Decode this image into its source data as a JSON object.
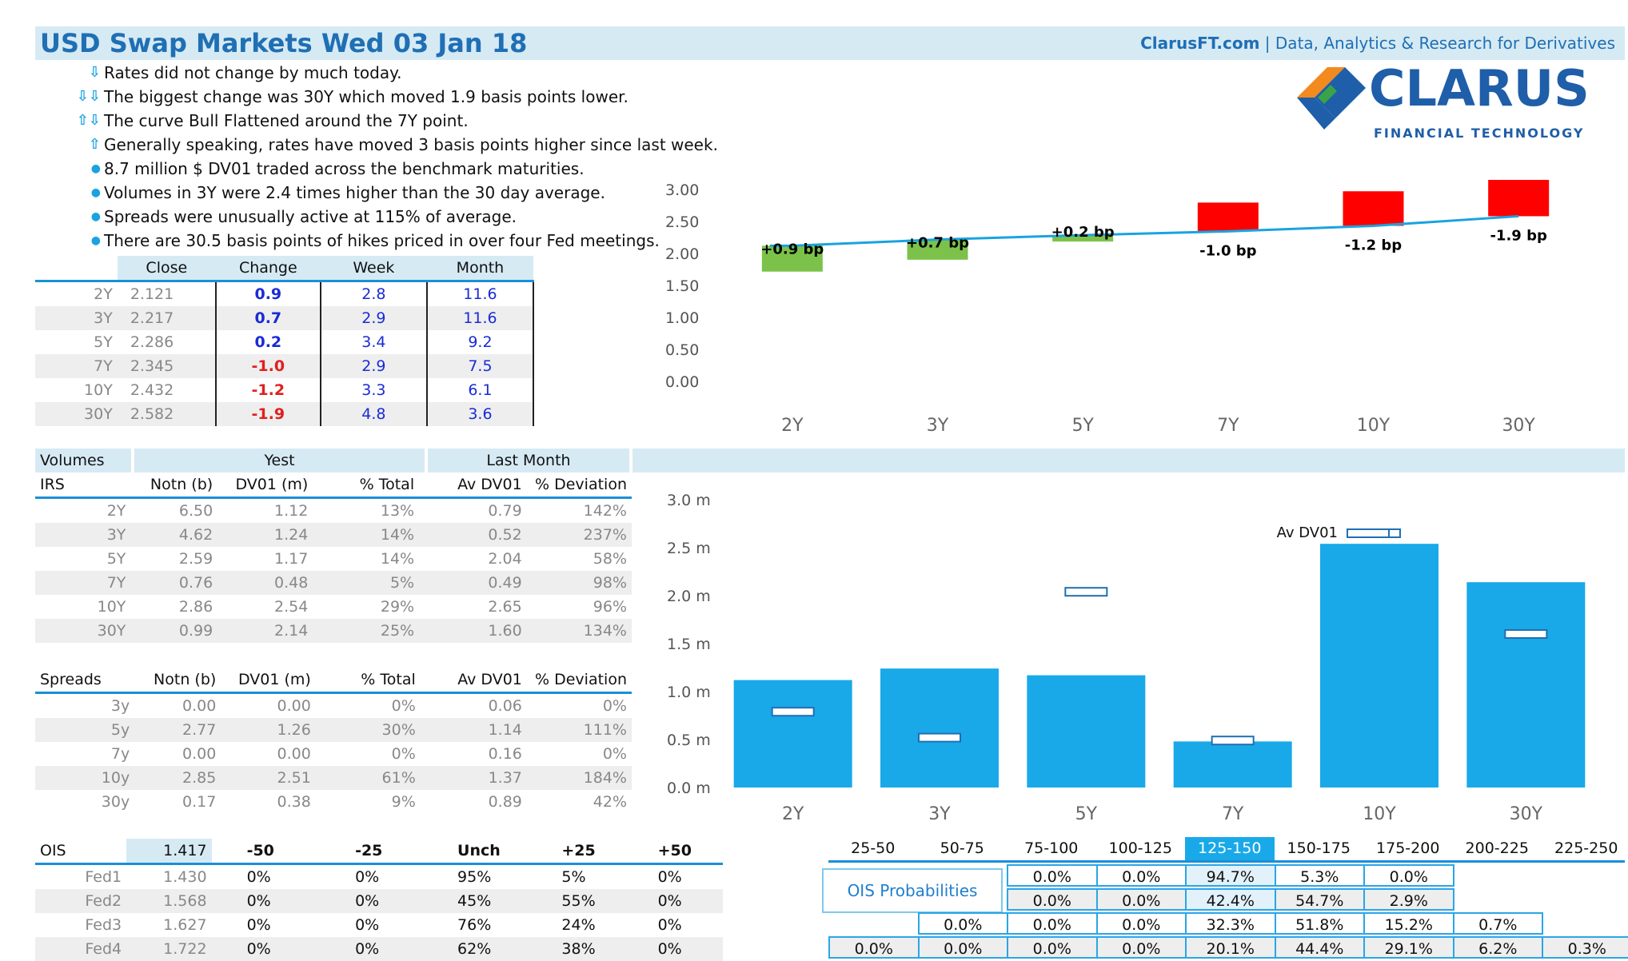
{
  "header": {
    "title": "USD Swap Markets Wed 03 Jan 18",
    "site": "ClarusFT.com",
    "separator": "|",
    "tagline": "Data, Analytics & Research for Derivatives",
    "logo_name": "CLARUS",
    "logo_sub": "FINANCIAL TECHNOLOGY",
    "logo_colors": {
      "orange": "#f28a1e",
      "blue": "#1f5ea8",
      "green": "#3aa24a"
    }
  },
  "bullets": [
    {
      "icon": "down-arrow-icon",
      "glyph": "⇩",
      "text": "Rates did not change by much today."
    },
    {
      "icon": "double-down-arrow-icon",
      "glyph": "⇩⇩",
      "text": "The biggest change was 30Y which moved 1.9 basis points lower."
    },
    {
      "icon": "up-down-arrow-icon",
      "glyph": "⇧⇩",
      "text": "The curve Bull Flattened around the 7Y point."
    },
    {
      "icon": "up-arrow-icon",
      "glyph": "⇧",
      "text": "Generally speaking, rates have moved 3 basis points higher since last week."
    },
    {
      "icon": "dot-icon",
      "glyph": "●",
      "text": "8.7 million $ DV01 traded across the benchmark maturities."
    },
    {
      "icon": "dot-icon",
      "glyph": "●",
      "text": "Volumes in 3Y were 2.4 times higher than the 30 day average."
    },
    {
      "icon": "dot-icon",
      "glyph": "●",
      "text": "Spreads were unusually active at 115% of average."
    },
    {
      "icon": "dot-icon",
      "glyph": "●",
      "text": "There are 30.5 basis points of hikes priced in over four Fed meetings."
    }
  ],
  "rates_table": {
    "headers": [
      "Close",
      "Change",
      "Week",
      "Month"
    ],
    "rows": [
      {
        "tenor": "2Y",
        "close": "2.121",
        "change": "0.9",
        "week": "2.8",
        "month": "11.6"
      },
      {
        "tenor": "3Y",
        "close": "2.217",
        "change": "0.7",
        "week": "2.9",
        "month": "11.6"
      },
      {
        "tenor": "5Y",
        "close": "2.286",
        "change": "0.2",
        "week": "3.4",
        "month": "9.2"
      },
      {
        "tenor": "7Y",
        "close": "2.345",
        "change": "-1.0",
        "week": "2.9",
        "month": "7.5"
      },
      {
        "tenor": "10Y",
        "close": "2.432",
        "change": "-1.2",
        "week": "3.3",
        "month": "6.1"
      },
      {
        "tenor": "30Y",
        "close": "2.582",
        "change": "-1.9",
        "week": "4.8",
        "month": "3.6"
      }
    ]
  },
  "volumes": {
    "section_label": "Volumes",
    "yest_label": "Yest",
    "last_month_label": "Last Month",
    "irs_label": "IRS",
    "spreads_label": "Spreads",
    "columns": [
      "Notn (b)",
      "DV01 (m)",
      "% Total",
      "Av DV01",
      "% Deviation"
    ],
    "irs_rows": [
      {
        "tenor": "2Y",
        "notn": "6.50",
        "dv01": "1.12",
        "total": "13%",
        "av": "0.79",
        "dev": "142%"
      },
      {
        "tenor": "3Y",
        "notn": "4.62",
        "dv01": "1.24",
        "total": "14%",
        "av": "0.52",
        "dev": "237%"
      },
      {
        "tenor": "5Y",
        "notn": "2.59",
        "dv01": "1.17",
        "total": "14%",
        "av": "2.04",
        "dev": "58%"
      },
      {
        "tenor": "7Y",
        "notn": "0.76",
        "dv01": "0.48",
        "total": "5%",
        "av": "0.49",
        "dev": "98%"
      },
      {
        "tenor": "10Y",
        "notn": "2.86",
        "dv01": "2.54",
        "total": "29%",
        "av": "2.65",
        "dev": "96%"
      },
      {
        "tenor": "30Y",
        "notn": "0.99",
        "dv01": "2.14",
        "total": "25%",
        "av": "1.60",
        "dev": "134%"
      }
    ],
    "spread_rows": [
      {
        "tenor": "3y",
        "notn": "0.00",
        "dv01": "0.00",
        "total": "0%",
        "av": "0.06",
        "dev": "0%"
      },
      {
        "tenor": "5y",
        "notn": "2.77",
        "dv01": "1.26",
        "total": "30%",
        "av": "1.14",
        "dev": "111%"
      },
      {
        "tenor": "7y",
        "notn": "0.00",
        "dv01": "0.00",
        "total": "0%",
        "av": "0.16",
        "dev": "0%"
      },
      {
        "tenor": "10y",
        "notn": "2.85",
        "dv01": "2.51",
        "total": "61%",
        "av": "1.37",
        "dev": "184%"
      },
      {
        "tenor": "30y",
        "notn": "0.17",
        "dv01": "0.38",
        "total": "9%",
        "av": "0.89",
        "dev": "42%"
      }
    ]
  },
  "ois": {
    "label": "OIS",
    "value": "1.417",
    "columns": [
      "-50",
      "-25",
      "Unch",
      "+25",
      "+50"
    ],
    "rows": [
      {
        "name": "Fed1",
        "rate": "1.430",
        "vals": [
          "0%",
          "0%",
          "95%",
          "5%",
          "0%"
        ]
      },
      {
        "name": "Fed2",
        "rate": "1.568",
        "vals": [
          "0%",
          "0%",
          "45%",
          "55%",
          "0%"
        ]
      },
      {
        "name": "Fed3",
        "rate": "1.627",
        "vals": [
          "0%",
          "0%",
          "76%",
          "24%",
          "0%"
        ]
      },
      {
        "name": "Fed4",
        "rate": "1.722",
        "vals": [
          "0%",
          "0%",
          "62%",
          "38%",
          "0%"
        ]
      }
    ],
    "prob_label": "OIS Probabilities",
    "ranges": [
      "25-50",
      "50-75",
      "75-100",
      "100-125",
      "125-150",
      "150-175",
      "175-200",
      "200-225",
      "225-250"
    ],
    "highlight_range": "125-150",
    "prob_rows": [
      {
        "start": 2,
        "vals": [
          "0.0%",
          "0.0%",
          "94.7%",
          "5.3%",
          "0.0%"
        ]
      },
      {
        "start": 2,
        "vals": [
          "0.0%",
          "0.0%",
          "42.4%",
          "54.7%",
          "2.9%"
        ]
      },
      {
        "start": 1,
        "vals": [
          "0.0%",
          "0.0%",
          "0.0%",
          "32.3%",
          "51.8%",
          "15.2%",
          "0.7%"
        ]
      },
      {
        "start": 0,
        "vals": [
          "0.0%",
          "0.0%",
          "0.0%",
          "0.0%",
          "20.1%",
          "44.4%",
          "29.1%",
          "6.2%",
          "0.3%"
        ]
      }
    ]
  },
  "chart_data": [
    {
      "type": "bar",
      "categories": [
        "2Y",
        "3Y",
        "5Y",
        "7Y",
        "10Y",
        "30Y"
      ],
      "series": [
        {
          "values": [
            2.121,
            2.217,
            2.286,
            2.345,
            2.432,
            2.582
          ],
          "color": "#1aa3e0",
          "kind": "line"
        },
        {
          "values": [
            0.9,
            0.7,
            0.2,
            -1.0,
            -1.2,
            -1.9
          ],
          "kind": "waterfall-bp"
        }
      ],
      "data_labels": [
        "+0.9 bp",
        "+0.7 bp",
        "+0.2 bp",
        "-1.0 bp",
        "-1.2 bp",
        "-1.9 bp"
      ],
      "yticks": [
        "3.00",
        "2.50",
        "2.00",
        "1.50",
        "1.00",
        "0.50",
        "0.00"
      ],
      "ylim": [
        0,
        3
      ],
      "colors": {
        "up": "#7cc24a",
        "down": "#ff0000"
      }
    },
    {
      "type": "bar",
      "categories": [
        "2Y",
        "3Y",
        "5Y",
        "7Y",
        "10Y",
        "30Y"
      ],
      "series": [
        {
          "values": [
            1.12,
            1.24,
            1.17,
            0.48,
            2.54,
            2.14
          ],
          "color": "#19a9e8"
        },
        {
          "name": "Av DV01",
          "values": [
            0.79,
            0.52,
            2.04,
            0.49,
            2.65,
            1.6
          ],
          "kind": "marker"
        }
      ],
      "yticks": [
        "3.0 m",
        "2.5 m",
        "2.0 m",
        "1.5 m",
        "1.0 m",
        "0.5 m",
        "0.0 m"
      ],
      "ylim": [
        0,
        3
      ]
    }
  ]
}
